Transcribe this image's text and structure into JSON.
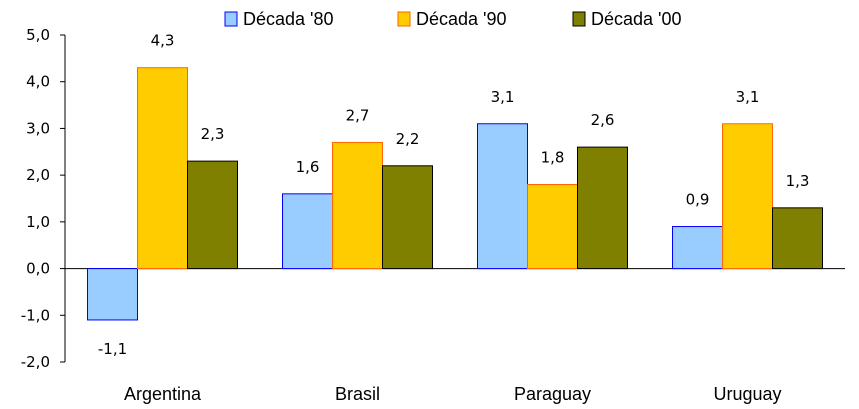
{
  "chart_data": {
    "type": "bar",
    "categories": [
      "Argentina",
      "Brasil",
      "Paraguay",
      "Uruguay"
    ],
    "series": [
      {
        "name": "Década '80",
        "values": [
          -1.1,
          1.6,
          3.1,
          0.9
        ],
        "labels": [
          "-1,1",
          "1,6",
          "3,1",
          "0,9"
        ],
        "fill": "#99CCFF",
        "stroke": "#0000FF"
      },
      {
        "name": "Década '90",
        "values": [
          4.3,
          2.7,
          1.8,
          3.1
        ],
        "labels": [
          "4,3",
          "2,7",
          "1,8",
          "3,1"
        ],
        "fill": "#FFCC00",
        "stroke": "#FF6600"
      },
      {
        "name": "Década '00",
        "values": [
          2.3,
          2.2,
          2.6,
          1.3
        ],
        "labels": [
          "2,3",
          "2,2",
          "2,6",
          "1,3"
        ],
        "fill": "#808000",
        "stroke": "#000000"
      }
    ],
    "yticks": [
      5.0,
      4.0,
      3.0,
      2.0,
      1.0,
      0.0,
      -1.0,
      -2.0
    ],
    "ytick_labels": [
      "5,0",
      "4,0",
      "3,0",
      "2,0",
      "1,0",
      "0,0",
      "-1,0",
      "-2,0"
    ],
    "ylim": [
      -2.0,
      5.0
    ],
    "grid": false,
    "legend_position": "top"
  }
}
